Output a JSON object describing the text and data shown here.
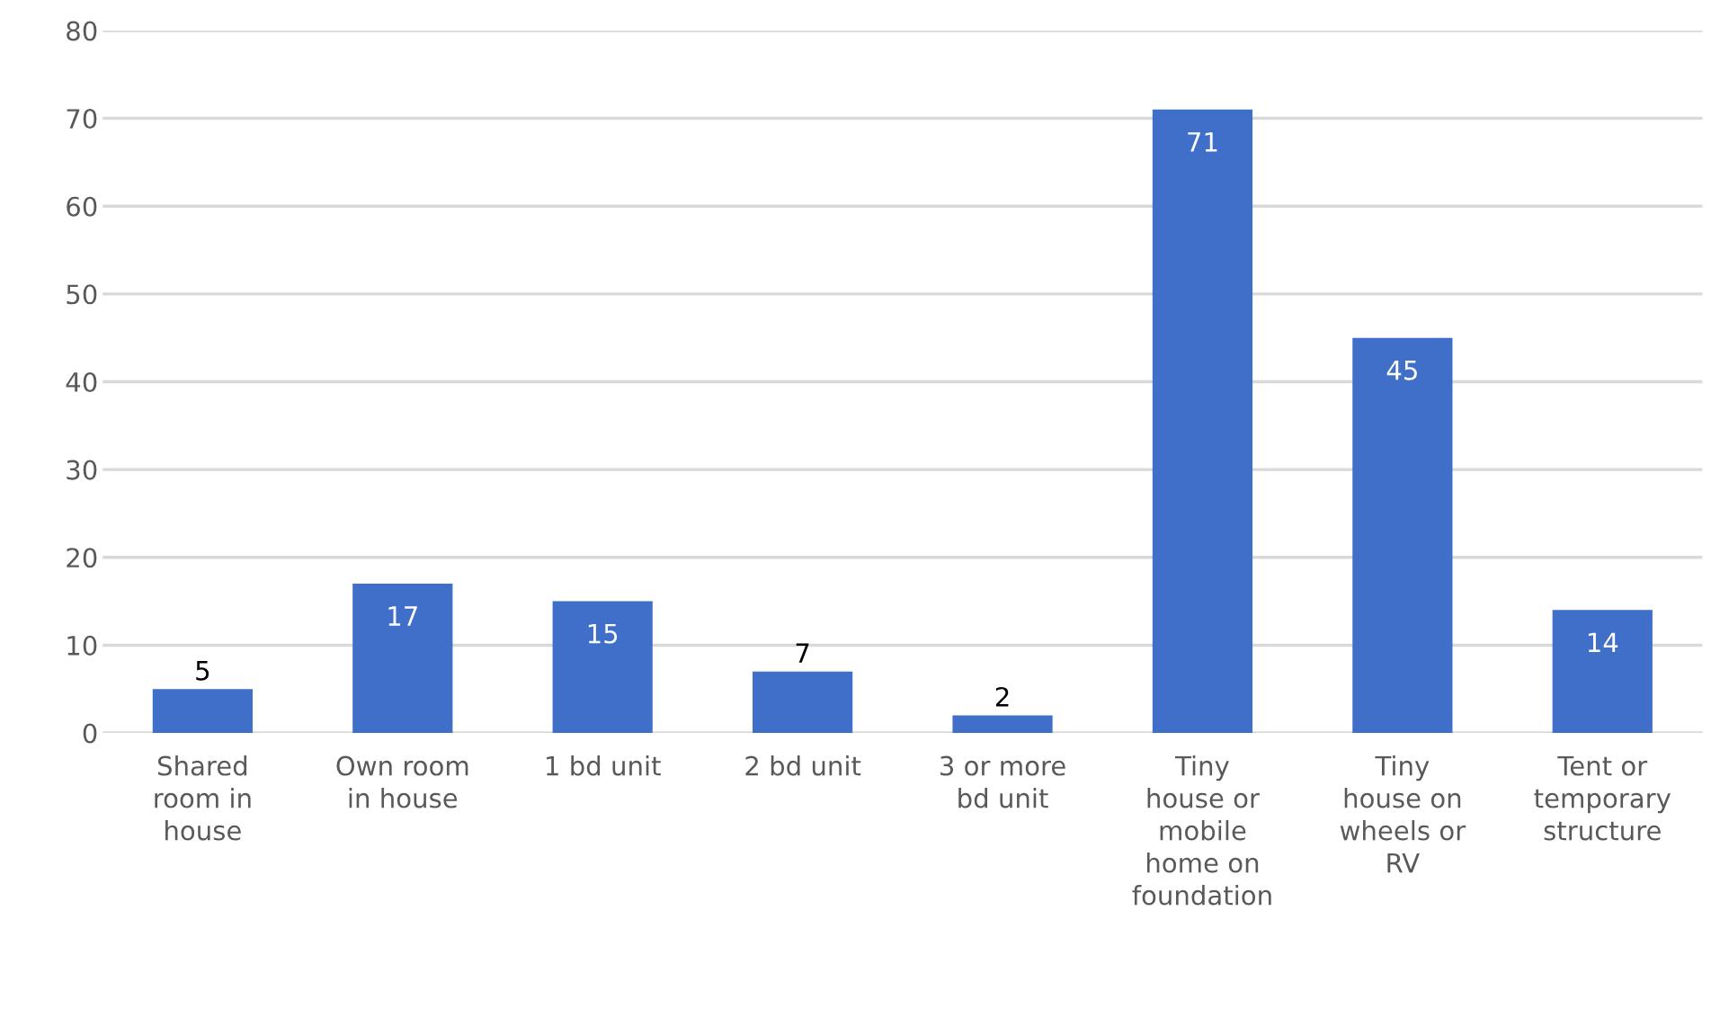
{
  "chart_data": {
    "type": "bar",
    "categories": [
      "Shared\nroom in\nhouse",
      "Own room\nin house",
      "1 bd unit",
      "2 bd unit",
      "3 or more\nbd unit",
      "Tiny\nhouse or\nmobile\nhome on\nfoundation",
      "Tiny\nhouse on\nwheels or\nRV",
      "Tent or\ntemporary\nstructure"
    ],
    "values": [
      5,
      17,
      15,
      7,
      2,
      71,
      45,
      14
    ],
    "color": "#3f6fc8",
    "ylim": [
      0,
      80
    ],
    "yticks": [
      0,
      10,
      20,
      30,
      40,
      50,
      60,
      70,
      80
    ],
    "grid": "y",
    "data_labels": true,
    "legend": false
  }
}
